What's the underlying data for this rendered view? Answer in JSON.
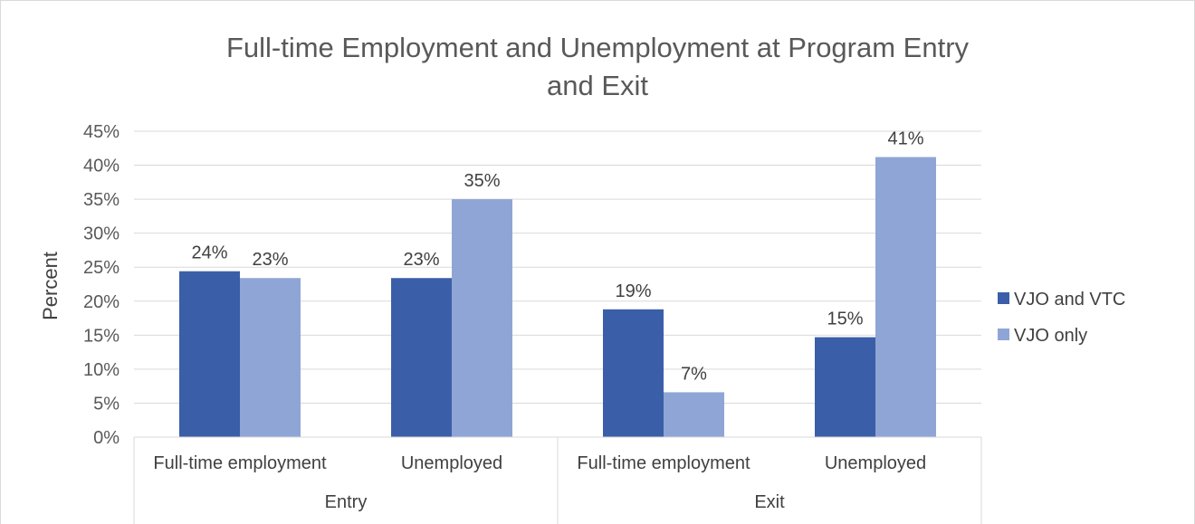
{
  "chart_data": {
    "type": "bar",
    "title_line1": "Full-time Employment and Unemployment at Program Entry",
    "title_line2": "and Exit",
    "ylabel": "Percent",
    "ylim": [
      0,
      45
    ],
    "y_ticks": [
      "0%",
      "5%",
      "10%",
      "15%",
      "20%",
      "25%",
      "30%",
      "35%",
      "40%",
      "45%"
    ],
    "grid": true,
    "legend_position": "right",
    "groups": [
      {
        "label": "Entry",
        "categories": [
          "Full-time employment",
          "Unemployed"
        ]
      },
      {
        "label": "Exit",
        "categories": [
          "Full-time employment",
          "Unemployed"
        ]
      }
    ],
    "categories": [
      "Full-time employment",
      "Unemployed",
      "Full-time employment",
      "Unemployed"
    ],
    "series": [
      {
        "name": "VJO and VTC",
        "color": "#3a5fa8",
        "values": [
          24.4,
          23.4,
          18.8,
          14.7
        ],
        "labels": [
          "24%",
          "23%",
          "19%",
          "15%"
        ]
      },
      {
        "name": "VJO only",
        "color": "#8fa5d6",
        "values": [
          23.4,
          35.0,
          6.6,
          41.2
        ],
        "labels": [
          "23%",
          "35%",
          "7%",
          "41%"
        ]
      }
    ]
  }
}
